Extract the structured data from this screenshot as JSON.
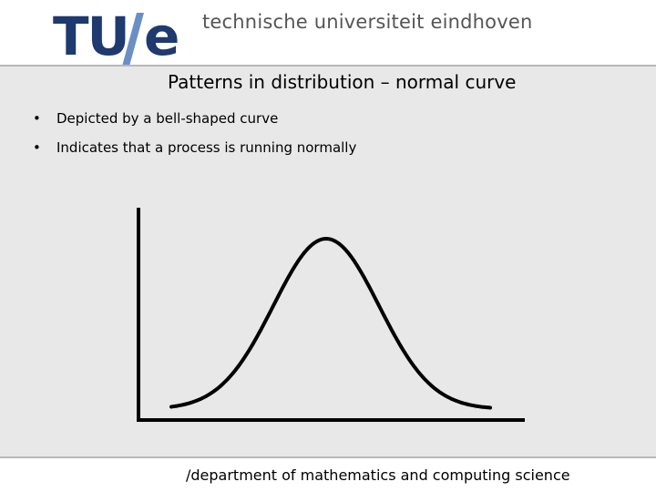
{
  "header": {
    "logo_letters": "TU",
    "logo_e": "e",
    "university_name": "technische universiteit eindhoven",
    "logo_color": "#1e3a6e"
  },
  "slide": {
    "title": "Patterns in distribution – normal curve",
    "bullets": [
      "Depicted by a bell-shaped curve",
      "Indicates that a process is running normally"
    ]
  },
  "footer": {
    "text": "/department of mathematics and computing science"
  }
}
